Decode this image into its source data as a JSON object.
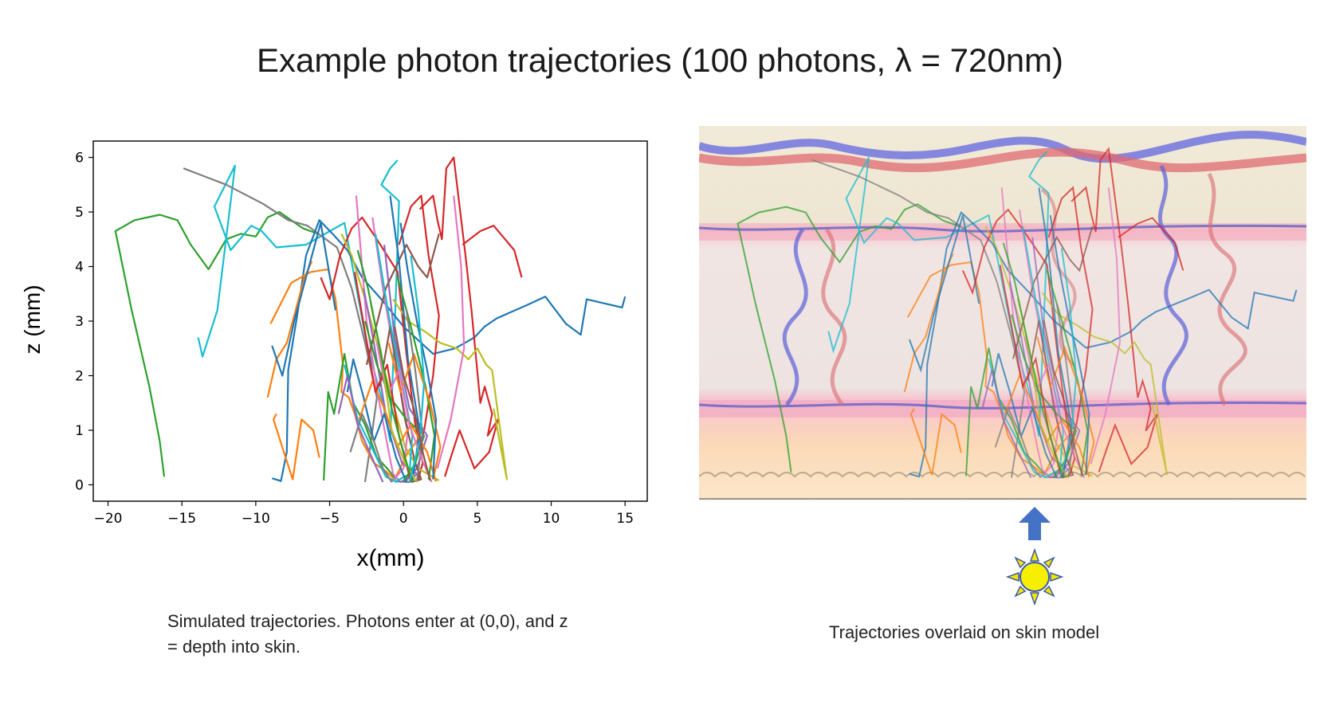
{
  "slide": {
    "title": "Example photon trajectories (100 photons, λ = 720nm)",
    "caption_left": "Simulated trajectories. Photons enter at (0,0), and z = depth into skin.",
    "caption_right": "Trajectories overlaid on skin model"
  },
  "chart_data": {
    "type": "line",
    "title": "",
    "xlabel": "x(mm)",
    "ylabel": "z (mm)",
    "xlim": [
      -21,
      16.5
    ],
    "ylim": [
      -0.3,
      6.3
    ],
    "xticks": [
      -20,
      -15,
      -10,
      -5,
      0,
      5,
      10,
      15
    ],
    "xtick_labels": [
      "−20",
      "−15",
      "−10",
      "−5",
      "0",
      "5",
      "10",
      "15"
    ],
    "yticks": [
      0,
      1,
      2,
      3,
      4,
      5,
      6
    ],
    "ytick_labels": [
      "0",
      "1",
      "2",
      "3",
      "4",
      "5",
      "6"
    ],
    "grid": false,
    "series": [
      {
        "color": "#2ca02c",
        "x": [
          -16.2,
          -16.5,
          -17.2,
          -18.4,
          -19.5,
          -18.2,
          -16.5,
          -15.3,
          -14.4,
          -13.2,
          -12.0,
          -11.0,
          -10.0,
          -9.2,
          -8.4,
          -7.6,
          -6.8,
          -5.8
        ],
        "y": [
          0.15,
          0.8,
          1.8,
          3.2,
          4.65,
          4.85,
          4.95,
          4.85,
          4.4,
          3.95,
          4.5,
          4.6,
          4.55,
          4.9,
          5.0,
          4.85,
          4.7,
          4.6
        ]
      },
      {
        "color": "#17becf",
        "x": [
          -13.9,
          -13.6,
          -12.6,
          -11.4,
          -12.8,
          -11.7,
          -10.3,
          -9.6,
          -8.6,
          -6.6,
          -4.0,
          -2.5,
          -1.4,
          -0.9,
          -0.5,
          -0.3,
          -1.5,
          -0.9,
          -0.4
        ],
        "y": [
          2.7,
          2.35,
          3.2,
          5.85,
          5.1,
          4.3,
          4.75,
          4.65,
          4.35,
          4.4,
          4.8,
          2.6,
          1.5,
          0.8,
          3.6,
          5.2,
          5.5,
          5.8,
          5.95
        ]
      },
      {
        "color": "#7f7f7f",
        "x": [
          -14.9,
          -12.0,
          -9.5,
          -7.8,
          -6.5,
          -4.5,
          -3.5,
          -2.6,
          -1.8,
          -2.2,
          -2.6
        ],
        "y": [
          5.8,
          5.5,
          5.15,
          4.85,
          4.75,
          4.35,
          3.6,
          2.6,
          1.6,
          0.8,
          0.05
        ]
      },
      {
        "color": "#1f77b4",
        "x": [
          -8.9,
          -8.3,
          -7.9,
          -7.8,
          -7.2,
          -6.6,
          -5.7,
          -4.8,
          -3.8,
          -2.8,
          -1.5,
          0.0,
          2.0,
          3.5,
          4.8,
          5.5,
          6.3,
          8.4,
          9.6,
          11.0,
          12.0,
          12.4,
          14.0,
          14.8,
          15.0
        ],
        "y": [
          0.12,
          0.07,
          0.6,
          2.1,
          3.1,
          4.2,
          4.85,
          4.6,
          4.3,
          3.8,
          3.4,
          2.9,
          2.4,
          2.5,
          2.7,
          2.9,
          3.05,
          3.3,
          3.45,
          2.95,
          2.75,
          3.4,
          3.3,
          3.25,
          3.45
        ]
      },
      {
        "color": "#ff7f0e",
        "x": [
          -9.0,
          -7.6,
          -6.3,
          -5.1,
          -4.6,
          -4.1,
          -4.2,
          -3.7,
          -3.3,
          -2.8,
          -2.0,
          -1.2,
          -0.6,
          0.3,
          1.2
        ],
        "y": [
          2.95,
          3.7,
          3.9,
          3.95,
          3.4,
          2.2,
          1.7,
          1.6,
          1.3,
          0.8,
          0.4,
          0.25,
          0.1,
          0.6,
          0.9
        ]
      },
      {
        "color": "#ff7f0e",
        "x": [
          -9.2,
          -8.6,
          -7.9,
          -6.7,
          -6.2
        ],
        "y": [
          1.6,
          2.3,
          2.6,
          3.8,
          4.1
        ]
      },
      {
        "color": "#ff7f0e",
        "x": [
          -8.6,
          -8.8,
          -8.1,
          -7.5,
          -6.9,
          -6.1,
          -5.7
        ],
        "y": [
          1.3,
          1.2,
          0.6,
          0.1,
          1.2,
          1.0,
          0.5
        ]
      },
      {
        "color": "#1f77b4",
        "x": [
          -8.9,
          -8.2,
          -7.4,
          -5.6,
          -4.6
        ],
        "y": [
          2.55,
          2.0,
          3.0,
          4.8,
          3.2
        ]
      },
      {
        "color": "#2ca02c",
        "x": [
          -5.4,
          -5.1,
          -4.7,
          -4.0,
          -3.4,
          -2.6,
          -1.8,
          -1.1,
          -0.5
        ],
        "y": [
          0.08,
          1.7,
          1.3,
          2.4,
          1.5,
          1.1,
          0.5,
          0.3,
          0.1
        ]
      },
      {
        "color": "#d62728",
        "x": [
          -0.3,
          0.5,
          1.2,
          1.7,
          2.4,
          2.0,
          1.4,
          0.8,
          0.5
        ],
        "y": [
          4.4,
          5.1,
          5.3,
          4.2,
          3.1,
          2.0,
          1.0,
          0.45,
          0.05
        ]
      },
      {
        "color": "#d62728",
        "x": [
          1.1,
          2.0,
          2.3,
          2.6,
          2.9,
          3.4,
          4.2,
          4.6,
          5.2,
          5.5,
          6.0,
          5.7,
          6.4,
          5.8,
          4.8,
          3.8,
          3.2,
          2.8
        ],
        "y": [
          5.05,
          5.3,
          4.85,
          4.5,
          5.8,
          6.0,
          4.2,
          3.2,
          1.5,
          1.8,
          1.3,
          0.9,
          1.2,
          0.6,
          0.3,
          1.0,
          0.5,
          0.15
        ]
      },
      {
        "color": "#d62728",
        "x": [
          4.0,
          5.2,
          6.1,
          7.5,
          8.0
        ],
        "y": [
          4.4,
          4.65,
          4.75,
          4.3,
          3.8
        ]
      },
      {
        "color": "#d62728",
        "x": [
          -5.6,
          -5.0,
          -4.3,
          -3.5,
          -2.8,
          -1.8,
          -0.4,
          0.2,
          0.8,
          1.3,
          1.0
        ],
        "y": [
          3.8,
          3.4,
          4.2,
          4.7,
          4.9,
          4.5,
          3.9,
          2.4,
          1.1,
          0.4,
          0.1
        ]
      },
      {
        "color": "#bcbd22",
        "x": [
          -0.7,
          0.3,
          1.5,
          2.5,
          3.6,
          4.4,
          5.0,
          5.6,
          6.0,
          6.4,
          6.8,
          7.0,
          6.5,
          6.1
        ],
        "y": [
          3.4,
          3.0,
          2.8,
          2.6,
          2.5,
          2.3,
          2.5,
          2.2,
          2.1,
          1.3,
          0.5,
          0.1,
          0.8,
          1.4
        ]
      },
      {
        "color": "#bcbd22",
        "x": [
          -4.2,
          -3.5,
          -2.6,
          -1.6,
          -0.7,
          0.1,
          1.0,
          2.4
        ],
        "y": [
          4.6,
          4.2,
          3.4,
          2.4,
          1.5,
          0.7,
          0.3,
          0.08
        ]
      },
      {
        "color": "#e377c2",
        "x": [
          -3.2,
          -2.5,
          -1.7,
          -1.0,
          -0.7,
          -0.2,
          0.6
        ],
        "y": [
          5.3,
          3.0,
          1.6,
          0.6,
          0.2,
          0.05,
          0.2
        ]
      },
      {
        "color": "#e377c2",
        "x": [
          3.4,
          3.9,
          4.1,
          3.2,
          2.3
        ],
        "y": [
          5.3,
          4.0,
          2.5,
          1.2,
          0.3
        ]
      },
      {
        "color": "#e377c2",
        "x": [
          -2.1,
          -1.4,
          -0.5,
          0.3,
          0.0,
          -0.8
        ],
        "y": [
          4.9,
          3.6,
          2.2,
          1.0,
          0.3,
          0.05
        ]
      },
      {
        "color": "#9467bd",
        "x": [
          -2.7,
          -2.0,
          -1.2,
          -0.1,
          0.9,
          0.4,
          -0.4
        ],
        "y": [
          3.6,
          2.6,
          1.3,
          0.4,
          0.2,
          0.05,
          0.06
        ]
      },
      {
        "color": "#9467bd",
        "x": [
          -1.3,
          -0.6,
          0.4,
          1.6,
          0.9,
          0.1
        ],
        "y": [
          4.4,
          2.7,
          1.4,
          0.9,
          0.3,
          0.05
        ]
      },
      {
        "color": "#8c564b",
        "x": [
          -2.5,
          -1.2,
          0.2,
          1.0,
          1.6,
          2.4
        ],
        "y": [
          2.2,
          3.6,
          4.4,
          4.0,
          3.8,
          4.6
        ]
      },
      {
        "color": "#8c564b",
        "x": [
          -1.6,
          -0.9,
          0.1,
          0.8,
          1.2,
          0.5
        ],
        "y": [
          1.8,
          2.9,
          1.2,
          0.4,
          0.1,
          0.05
        ]
      },
      {
        "color": "#17becf",
        "x": [
          -1.9,
          -1.0,
          -0.2,
          0.6,
          0.4,
          -0.6
        ],
        "y": [
          4.6,
          3.1,
          2.0,
          0.9,
          0.2,
          0.05
        ]
      },
      {
        "color": "#17becf",
        "x": [
          -4.0,
          -3.1,
          -2.0,
          -1.2,
          -0.4
        ],
        "y": [
          2.2,
          1.2,
          0.6,
          0.15,
          0.05
        ]
      },
      {
        "color": "#1f77b4",
        "x": [
          -3.8,
          -3.4,
          -2.7,
          -2.0,
          -1.3,
          -0.5,
          0.2
        ],
        "y": [
          1.7,
          2.3,
          1.6,
          0.8,
          1.3,
          0.5,
          0.05
        ]
      },
      {
        "color": "#1f77b4",
        "x": [
          -0.9,
          -0.3,
          0.3,
          1.1,
          0.6
        ],
        "y": [
          5.3,
          4.1,
          2.3,
          1.0,
          0.05
        ]
      },
      {
        "color": "#2ca02c",
        "x": [
          -2.6,
          -1.8,
          -0.9,
          0.2,
          1.4,
          0.8,
          0.0
        ],
        "y": [
          3.0,
          2.2,
          1.6,
          1.2,
          0.9,
          0.4,
          0.05
        ]
      },
      {
        "color": "#2ca02c",
        "x": [
          -0.4,
          0.5,
          1.5,
          2.1,
          1.7
        ],
        "y": [
          3.8,
          2.9,
          1.8,
          0.9,
          0.1
        ]
      },
      {
        "color": "#ff7f0e",
        "x": [
          -3.0,
          -2.1,
          -1.3,
          -0.4,
          0.5,
          1.6,
          2.2
        ],
        "y": [
          1.2,
          1.9,
          1.4,
          0.7,
          1.1,
          0.6,
          0.06
        ]
      },
      {
        "color": "#ff7f0e",
        "x": [
          -1.0,
          -0.2,
          0.7,
          1.8,
          2.5,
          2.0
        ],
        "y": [
          2.6,
          1.7,
          2.4,
          1.5,
          0.7,
          0.1
        ]
      },
      {
        "color": "#d62728",
        "x": [
          -3.3,
          -2.6,
          -1.9,
          -1.1,
          -0.3,
          0.5
        ],
        "y": [
          3.9,
          2.8,
          1.7,
          2.2,
          0.9,
          0.05
        ]
      },
      {
        "color": "#7f7f7f",
        "x": [
          -3.6,
          -2.8,
          -2.0,
          -1.4,
          -0.8
        ],
        "y": [
          0.6,
          1.3,
          0.8,
          0.3,
          0.05
        ]
      },
      {
        "color": "#7f7f7f",
        "x": [
          0.2,
          0.8,
          1.3,
          0.9
        ],
        "y": [
          3.2,
          2.1,
          0.9,
          0.05
        ]
      },
      {
        "color": "#9467bd",
        "x": [
          -4.4,
          -3.8,
          -3.1,
          -2.3,
          -1.4
        ],
        "y": [
          1.3,
          2.0,
          1.1,
          0.6,
          0.05
        ]
      },
      {
        "color": "#e377c2",
        "x": [
          -1.8,
          -1.1,
          -0.3,
          0.4,
          1.2,
          1.9
        ],
        "y": [
          2.6,
          1.6,
          2.1,
          1.1,
          0.5,
          0.05
        ]
      },
      {
        "color": "#bcbd22",
        "x": [
          -2.2,
          -1.5,
          -0.8,
          0.1,
          0.9
        ],
        "y": [
          3.3,
          2.4,
          1.0,
          0.4,
          0.05
        ]
      },
      {
        "color": "#1f77b4",
        "x": [
          -0.2,
          0.3,
          0.9,
          1.6,
          2.2,
          2.0
        ],
        "y": [
          4.8,
          3.9,
          3.0,
          2.1,
          1.2,
          0.1
        ]
      },
      {
        "color": "#2ca02c",
        "x": [
          -3.1,
          -2.4,
          -1.6,
          -0.8,
          0.0,
          0.6
        ],
        "y": [
          4.3,
          3.6,
          2.5,
          1.4,
          0.6,
          0.05
        ]
      },
      {
        "color": "#17becf",
        "x": [
          0.5,
          1.0,
          1.4,
          1.1,
          0.4
        ],
        "y": [
          4.2,
          3.2,
          1.9,
          0.8,
          0.05
        ]
      },
      {
        "color": "#8c564b",
        "x": [
          -0.6,
          0.0,
          0.7,
          1.3,
          1.8
        ],
        "y": [
          2.9,
          2.0,
          1.4,
          0.6,
          0.08
        ]
      }
    ]
  }
}
